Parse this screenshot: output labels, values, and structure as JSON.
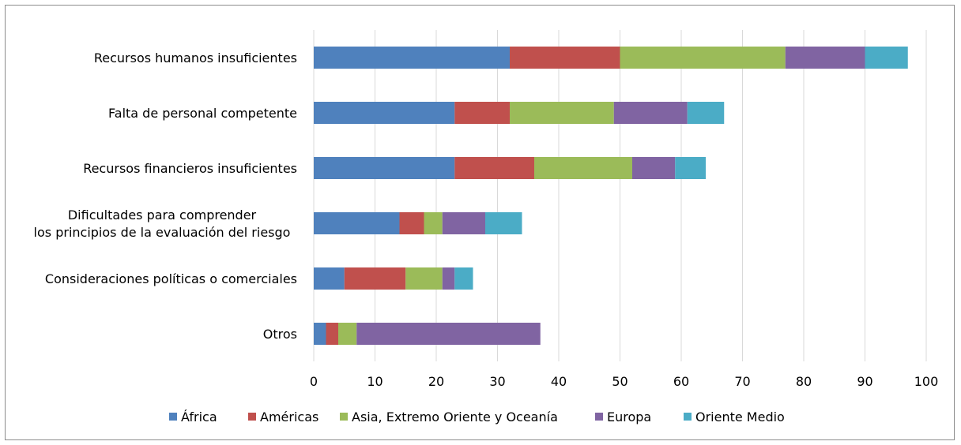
{
  "chart_data": {
    "type": "bar",
    "orientation": "horizontal",
    "stacked": true,
    "categories": [
      [
        "Recursos humanos insuficientes"
      ],
      [
        "Falta de personal competente"
      ],
      [
        "Recursos financieros insuficientes"
      ],
      [
        "Dificultades para comprender",
        "los principios de la evaluación del riesgo"
      ],
      [
        "Consideraciones políticas o comerciales"
      ],
      [
        "Otros"
      ]
    ],
    "series": [
      {
        "name": "África",
        "color": "#4f81bd",
        "values": [
          32,
          23,
          23,
          14,
          5,
          2
        ]
      },
      {
        "name": "Américas",
        "color": "#c0504d",
        "values": [
          18,
          9,
          13,
          4,
          10,
          2
        ]
      },
      {
        "name": "Asia, Extremo Oriente y Oceanía",
        "color": "#9bbb59",
        "values": [
          27,
          17,
          16,
          3,
          6,
          3
        ]
      },
      {
        "name": "Europa",
        "color": "#8064a2",
        "values": [
          13,
          12,
          7,
          7,
          2,
          30
        ]
      },
      {
        "name": "Oriente Medio",
        "color": "#4bacc6",
        "values": [
          7,
          6,
          5,
          6,
          3,
          0
        ]
      }
    ],
    "xlim": [
      0,
      100
    ],
    "xticks": [
      "0",
      "10",
      "20",
      "30",
      "40",
      "50",
      "60",
      "70",
      "80",
      "90",
      "100"
    ],
    "grid": "vertical",
    "legend": "bottom"
  }
}
